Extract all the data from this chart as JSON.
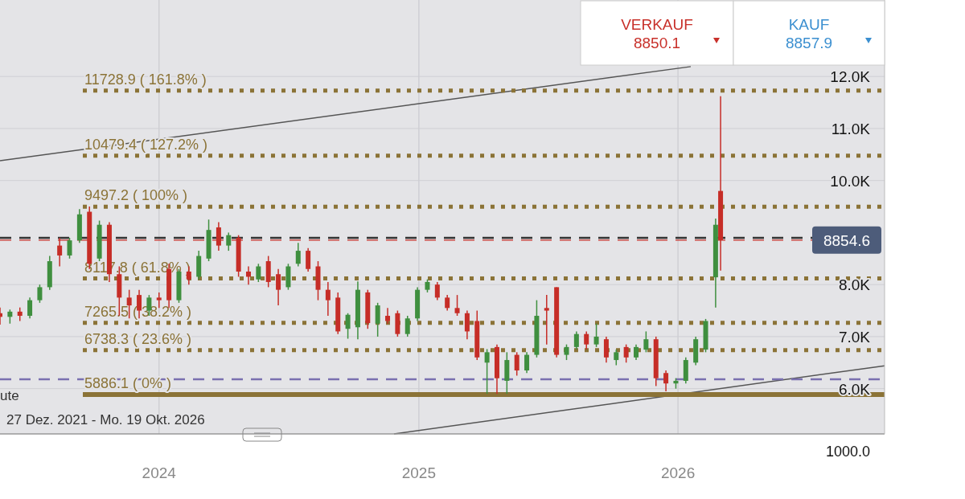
{
  "chart_data": {
    "type": "candlestick",
    "x": [
      "2023-05-22",
      "2023-06-05",
      "2023-06-19",
      "2023-07-03",
      "2023-07-17",
      "2023-07-31",
      "2023-08-14",
      "2023-08-28",
      "2023-09-11",
      "2023-09-25",
      "2023-10-09",
      "2023-10-23",
      "2023-11-06",
      "2023-11-20",
      "2023-12-04",
      "2023-12-18",
      "2024-01-01",
      "2024-01-15",
      "2024-01-29",
      "2024-02-12",
      "2024-02-26",
      "2024-03-11",
      "2024-03-25",
      "2024-04-08",
      "2024-04-22",
      "2024-05-06",
      "2024-05-20",
      "2024-06-03",
      "2024-06-17",
      "2024-07-01",
      "2024-07-15",
      "2024-07-29",
      "2024-08-12",
      "2024-08-26",
      "2024-09-09",
      "2024-09-23",
      "2024-10-07",
      "2024-10-21",
      "2024-11-04",
      "2024-11-18",
      "2024-12-02",
      "2024-12-16",
      "2024-12-30",
      "2025-01-13",
      "2025-01-27",
      "2025-02-10",
      "2025-02-24",
      "2025-03-10",
      "2025-03-24",
      "2025-04-07",
      "2025-04-21",
      "2025-05-05",
      "2025-05-19",
      "2025-06-02",
      "2025-06-16",
      "2025-06-30",
      "2025-07-14",
      "2025-07-28",
      "2025-08-11",
      "2025-08-25",
      "2025-09-08",
      "2025-09-22",
      "2025-10-06",
      "2025-10-20",
      "2025-11-03",
      "2025-11-17",
      "2025-12-01",
      "2025-12-15",
      "2025-12-29",
      "2026-01-12",
      "2026-01-26",
      "2026-02-09",
      "2026-02-23",
      "2026-03-02"
    ],
    "ohlc": [
      [
        7450,
        7560,
        7230,
        7380
      ],
      [
        7380,
        7520,
        7250,
        7480
      ],
      [
        7480,
        7560,
        7300,
        7400
      ],
      [
        7400,
        7750,
        7350,
        7700
      ],
      [
        7700,
        8000,
        7650,
        7950
      ],
      [
        7950,
        8550,
        7900,
        8450
      ],
      [
        8750,
        8900,
        8350,
        8560
      ],
      [
        8560,
        8900,
        8500,
        8850
      ],
      [
        8850,
        9450,
        8800,
        9350
      ],
      [
        9400,
        9500,
        8300,
        8400
      ],
      [
        8500,
        9230,
        8450,
        9150
      ],
      [
        9150,
        9200,
        8050,
        8200
      ],
      [
        8200,
        8350,
        7400,
        7750
      ],
      [
        7750,
        7900,
        7350,
        7600
      ],
      [
        7800,
        7900,
        7350,
        7500
      ],
      [
        7500,
        7800,
        7400,
        7750
      ],
      [
        7750,
        7850,
        7550,
        7700
      ],
      [
        8300,
        8400,
        7550,
        7700
      ],
      [
        7700,
        8300,
        7650,
        8250
      ],
      [
        8250,
        8350,
        8000,
        8100
      ],
      [
        8150,
        8650,
        8100,
        8550
      ],
      [
        8500,
        9250,
        8450,
        9050
      ],
      [
        9100,
        9200,
        8650,
        8750
      ],
      [
        8750,
        9000,
        8650,
        8950
      ],
      [
        8900,
        8950,
        8150,
        8250
      ],
      [
        8250,
        8350,
        8000,
        8150
      ],
      [
        8100,
        8400,
        8050,
        8350
      ],
      [
        8450,
        8550,
        7950,
        8050
      ],
      [
        8200,
        8300,
        7600,
        7900
      ],
      [
        7950,
        8400,
        7900,
        8350
      ],
      [
        8400,
        8800,
        8350,
        8650
      ],
      [
        8650,
        8700,
        8250,
        8300
      ],
      [
        8350,
        8450,
        7700,
        7900
      ],
      [
        7900,
        8050,
        7400,
        7700
      ],
      [
        7750,
        7850,
        7050,
        7100
      ],
      [
        7150,
        7450,
        6960,
        7420
      ],
      [
        7180,
        8060,
        6950,
        7900
      ],
      [
        7850,
        7900,
        7150,
        7260
      ],
      [
        7250,
        7650,
        7000,
        7600
      ],
      [
        7400,
        7550,
        7250,
        7300
      ],
      [
        7450,
        7500,
        7000,
        7050
      ],
      [
        7050,
        7400,
        7000,
        7350
      ],
      [
        7350,
        7950,
        7300,
        7900
      ],
      [
        7900,
        8100,
        7850,
        8050
      ],
      [
        8000,
        8050,
        7700,
        7750
      ],
      [
        7750,
        7800,
        7500,
        7550
      ],
      [
        7550,
        7800,
        7400,
        7450
      ],
      [
        7450,
        7500,
        6950,
        7100
      ],
      [
        7300,
        7500,
        6550,
        6600
      ],
      [
        6500,
        6760,
        5900,
        6700
      ],
      [
        6800,
        6850,
        5900,
        6200
      ],
      [
        6150,
        6700,
        5900,
        6550
      ],
      [
        6650,
        6700,
        6250,
        6350
      ],
      [
        6350,
        6700,
        6300,
        6650
      ],
      [
        6650,
        7700,
        6600,
        7400
      ],
      [
        7550,
        7800,
        6850,
        7500
      ],
      [
        7950,
        7950,
        6600,
        6650
      ],
      [
        6650,
        6850,
        6550,
        6800
      ],
      [
        6800,
        7100,
        6750,
        7050
      ],
      [
        7050,
        7100,
        6750,
        6850
      ],
      [
        6850,
        7250,
        6800,
        7000
      ],
      [
        6950,
        7000,
        6500,
        6600
      ],
      [
        6550,
        6750,
        6450,
        6700
      ],
      [
        6800,
        6850,
        6500,
        6600
      ],
      [
        6600,
        6850,
        6550,
        6800
      ],
      [
        6750,
        7100,
        6700,
        6950
      ],
      [
        6950,
        7000,
        6050,
        6200
      ],
      [
        6300,
        6350,
        5950,
        6100
      ],
      [
        6100,
        6200,
        6000,
        6150
      ],
      [
        6150,
        6600,
        6100,
        6550
      ],
      [
        6500,
        7000,
        6450,
        6950
      ],
      [
        6750,
        7340,
        6700,
        7300
      ],
      [
        8140,
        9270,
        7560,
        9150
      ],
      [
        9800,
        11620,
        8270,
        8854.6
      ]
    ],
    "series": [
      {
        "type": "line",
        "x": [
          "2023-05-22",
          "2026-01-19"
        ],
        "values": [
          10380,
          12190
        ],
        "color": "#555555"
      },
      {
        "type": "line",
        "x": [
          "2024-11-27",
          "2026-10-19"
        ],
        "values": [
          5130,
          6440
        ],
        "color": "#555555"
      }
    ],
    "xlim": [
      "2023-05-22",
      "2026-10-19"
    ],
    "xticks": [
      "2024",
      "2025",
      "2026"
    ],
    "ylim": [
      5130,
      13470
    ],
    "yticks": [
      {
        "value": 6000,
        "label": "6.0K"
      },
      {
        "value": 7000,
        "label": "7.0K"
      },
      {
        "value": 8000,
        "label": "8.0K"
      },
      {
        "value": 10000,
        "label": "10.0K"
      },
      {
        "value": 11000,
        "label": "11.0K"
      },
      {
        "value": 12000,
        "label": "12.0K"
      }
    ],
    "grid": true,
    "ref_lines": [
      {
        "axis": "y",
        "value": 11728.9,
        "label": "11728.9 ( 161.8% )",
        "color": "#8b7337",
        "line_style": "dotted"
      },
      {
        "axis": "y",
        "value": 10479.4,
        "label": "10479.4 ( 127.2% )",
        "color": "#8b7337",
        "line_style": "dotted"
      },
      {
        "axis": "y",
        "value": 9497.2,
        "label": "9497.2 ( 100% )",
        "color": "#8b7337",
        "line_style": "dotted"
      },
      {
        "axis": "y",
        "value": 8117.8,
        "label": "8117.8 ( 61.8% )",
        "color": "#8b7337",
        "line_style": "dotted"
      },
      {
        "axis": "y",
        "value": 7265.5,
        "label": "7265.5 ( 38.2% )",
        "color": "#8b7337",
        "line_style": "dotted"
      },
      {
        "axis": "y",
        "value": 6738.3,
        "label": "6738.3 ( 23.6% )",
        "color": "#8b7337",
        "line_style": "dotted"
      },
      {
        "axis": "y",
        "value": 5886.1,
        "label": "5886.1 ( 0% )",
        "color": "#8b7337",
        "line_style": "solid"
      },
      {
        "axis": "y",
        "value": 8900,
        "color": "#333333",
        "line_style": "dashed"
      },
      {
        "axis": "y",
        "value": 6180,
        "color": "#7a70b0",
        "line_style": "dashed"
      },
      {
        "axis": "y",
        "value": 8854.6,
        "label": "8854.6",
        "color": "#c8302a",
        "line_style": "dashed"
      }
    ],
    "annotations": [
      "VERKAUF",
      "8850.1",
      "KAUF",
      "8857.9",
      "27 Dez. 2021 - Mo. 19 Okt. 2026",
      "ute",
      "1000.0"
    ]
  }
}
